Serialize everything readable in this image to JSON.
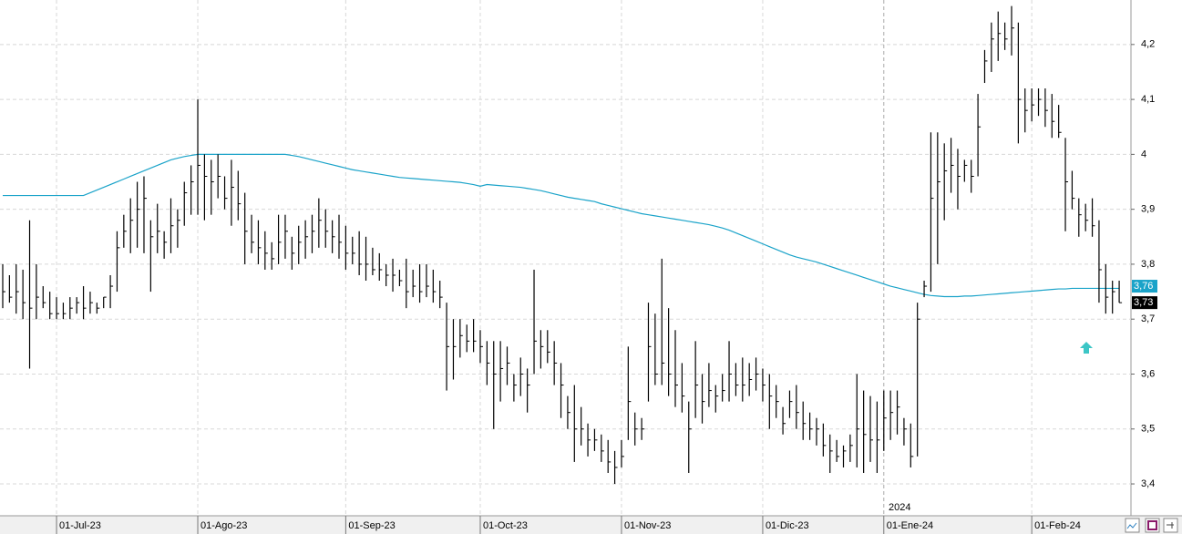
{
  "chart_data": {
    "type": "ohlc",
    "color": "#000000",
    "ylim": [
      3.342,
      4.281
    ],
    "grid": true,
    "yticks": [
      {
        "value": 3.4,
        "label": "3,4"
      },
      {
        "value": 3.5,
        "label": "3,5"
      },
      {
        "value": 3.6,
        "label": "3,6"
      },
      {
        "value": 3.7,
        "label": "3,7"
      },
      {
        "value": 3.8,
        "label": "3,8"
      },
      {
        "value": 3.9,
        "label": "3,9"
      },
      4,
      {
        "value": 4.1,
        "label": "4,1"
      },
      {
        "value": 4.2,
        "label": "4,2"
      }
    ],
    "annotation": "2024",
    "categories": [
      null,
      null,
      null,
      null,
      null,
      null,
      null,
      null,
      "01-Jul-23",
      null,
      null,
      null,
      null,
      null,
      null,
      null,
      null,
      null,
      null,
      null,
      null,
      null,
      null,
      null,
      null,
      null,
      null,
      null,
      null,
      "01-Ago-23",
      null,
      null,
      null,
      null,
      null,
      null,
      null,
      null,
      null,
      null,
      null,
      null,
      null,
      null,
      null,
      null,
      null,
      null,
      null,
      null,
      null,
      "01-Sep-23",
      null,
      null,
      null,
      null,
      null,
      null,
      null,
      null,
      null,
      null,
      null,
      null,
      null,
      null,
      null,
      null,
      null,
      null,
      null,
      "01-Oct-23",
      null,
      null,
      null,
      null,
      null,
      null,
      null,
      null,
      null,
      null,
      null,
      null,
      null,
      null,
      null,
      null,
      null,
      null,
      null,
      null,
      "01-Nov-23",
      null,
      null,
      null,
      null,
      null,
      null,
      null,
      null,
      null,
      null,
      null,
      null,
      null,
      null,
      null,
      null,
      null,
      null,
      null,
      null,
      "01-Dic-23",
      null,
      null,
      null,
      null,
      null,
      null,
      null,
      null,
      null,
      null,
      null,
      null,
      null,
      null,
      null,
      null,
      null,
      "01-Ene-24",
      null,
      null,
      null,
      null,
      null,
      null,
      null,
      null,
      null,
      null,
      null,
      null,
      null,
      null,
      null,
      null,
      null,
      null,
      null,
      null,
      null,
      "01-Feb-24",
      null,
      null,
      null,
      null,
      null,
      null,
      null,
      null,
      null,
      null,
      null,
      null,
      null
    ],
    "high": [
      3.8,
      3.78,
      3.8,
      3.79,
      3.88,
      3.8,
      3.76,
      3.75,
      3.74,
      3.73,
      3.74,
      3.74,
      3.76,
      3.75,
      3.73,
      3.74,
      3.78,
      3.86,
      3.89,
      3.92,
      3.95,
      3.96,
      3.88,
      3.91,
      3.86,
      3.92,
      3.9,
      3.95,
      3.98,
      4.1,
      4.0,
      3.99,
      4.0,
      3.96,
      3.99,
      3.97,
      3.93,
      3.89,
      3.88,
      3.86,
      3.84,
      3.89,
      3.89,
      3.85,
      3.87,
      3.88,
      3.89,
      3.92,
      3.9,
      3.88,
      3.89,
      3.87,
      3.85,
      3.86,
      3.85,
      3.83,
      3.82,
      3.8,
      3.81,
      3.79,
      3.81,
      3.79,
      3.8,
      3.8,
      3.79,
      3.77,
      3.73,
      3.7,
      3.7,
      3.69,
      3.7,
      3.68,
      3.66,
      3.66,
      3.66,
      3.65,
      3.6,
      3.63,
      3.61,
      3.79,
      3.68,
      3.68,
      3.66,
      3.62,
      3.56,
      3.58,
      3.54,
      3.51,
      3.5,
      3.49,
      3.48,
      3.46,
      3.48,
      3.65,
      3.53,
      3.52,
      3.73,
      3.71,
      3.81,
      3.72,
      3.68,
      3.62,
      3.55,
      3.66,
      3.6,
      3.62,
      3.58,
      3.6,
      3.66,
      3.62,
      3.63,
      3.62,
      3.63,
      3.61,
      3.6,
      3.58,
      3.54,
      3.57,
      3.58,
      3.55,
      3.53,
      3.52,
      3.51,
      3.49,
      3.48,
      3.47,
      3.49,
      3.6,
      3.57,
      3.56,
      3.55,
      3.57,
      3.57,
      3.57,
      3.52,
      3.51,
      3.73,
      3.77,
      4.04,
      4.04,
      4.02,
      4.03,
      4.01,
      3.99,
      3.99,
      4.11,
      4.19,
      4.24,
      4.26,
      4.24,
      4.27,
      4.24,
      4.12,
      4.12,
      4.12,
      4.12,
      4.11,
      4.09,
      4.03,
      3.97,
      3.92,
      3.91,
      3.92,
      3.88,
      3.8,
      3.77,
      3.77
    ],
    "low": [
      3.72,
      3.73,
      3.71,
      3.7,
      3.61,
      3.7,
      3.72,
      3.7,
      3.7,
      3.7,
      3.7,
      3.71,
      3.7,
      3.71,
      3.71,
      3.72,
      3.72,
      3.75,
      3.83,
      3.82,
      3.83,
      3.82,
      3.75,
      3.82,
      3.81,
      3.82,
      3.83,
      3.87,
      3.89,
      3.89,
      3.88,
      3.89,
      3.92,
      3.9,
      3.87,
      3.88,
      3.8,
      3.82,
      3.8,
      3.79,
      3.79,
      3.8,
      3.81,
      3.79,
      3.8,
      3.81,
      3.82,
      3.83,
      3.83,
      3.82,
      3.81,
      3.79,
      3.8,
      3.78,
      3.77,
      3.78,
      3.77,
      3.76,
      3.75,
      3.76,
      3.72,
      3.74,
      3.73,
      3.74,
      3.73,
      3.72,
      3.57,
      3.59,
      3.63,
      3.64,
      3.64,
      3.62,
      3.58,
      3.5,
      3.55,
      3.58,
      3.55,
      3.56,
      3.53,
      3.6,
      3.61,
      3.62,
      3.58,
      3.52,
      3.5,
      3.44,
      3.47,
      3.45,
      3.46,
      3.44,
      3.42,
      3.4,
      3.43,
      3.48,
      3.47,
      3.48,
      3.55,
      3.58,
      3.58,
      3.56,
      3.54,
      3.53,
      3.42,
      3.52,
      3.51,
      3.54,
      3.53,
      3.55,
      3.55,
      3.56,
      3.55,
      3.56,
      3.57,
      3.55,
      3.5,
      3.52,
      3.49,
      3.52,
      3.5,
      3.48,
      3.48,
      3.47,
      3.45,
      3.42,
      3.44,
      3.43,
      3.44,
      3.43,
      3.42,
      3.44,
      3.42,
      3.46,
      3.48,
      3.49,
      3.47,
      3.43,
      3.45,
      3.74,
      3.75,
      3.8,
      3.88,
      3.93,
      3.9,
      3.95,
      3.93,
      3.96,
      4.13,
      4.15,
      4.17,
      4.19,
      4.18,
      4.02,
      4.04,
      4.06,
      4.07,
      4.05,
      4.03,
      4.03,
      3.86,
      3.9,
      3.85,
      3.86,
      3.85,
      3.73,
      3.71,
      3.71,
      3.73
    ],
    "close": [
      3.75,
      3.74,
      3.75,
      3.73,
      3.72,
      3.74,
      3.73,
      3.71,
      3.71,
      3.71,
      3.72,
      3.73,
      3.72,
      3.73,
      3.72,
      3.74,
      3.76,
      3.83,
      3.86,
      3.88,
      3.9,
      3.92,
      3.85,
      3.86,
      3.84,
      3.87,
      3.88,
      3.93,
      3.95,
      3.98,
      3.96,
      3.95,
      3.96,
      3.92,
      3.94,
      3.91,
      3.86,
      3.84,
      3.83,
      3.82,
      3.81,
      3.84,
      3.86,
      3.82,
      3.84,
      3.85,
      3.86,
      3.88,
      3.86,
      3.85,
      3.84,
      3.82,
      3.82,
      3.8,
      3.8,
      3.79,
      3.79,
      3.78,
      3.78,
      3.77,
      3.75,
      3.76,
      3.75,
      3.76,
      3.75,
      3.74,
      3.65,
      3.65,
      3.67,
      3.66,
      3.66,
      3.65,
      3.62,
      3.6,
      3.61,
      3.62,
      3.58,
      3.6,
      3.58,
      3.66,
      3.65,
      3.64,
      3.62,
      3.58,
      3.53,
      3.5,
      3.5,
      3.48,
      3.48,
      3.46,
      3.44,
      3.43,
      3.45,
      3.55,
      3.5,
      3.5,
      3.65,
      3.6,
      3.62,
      3.6,
      3.58,
      3.56,
      3.5,
      3.58,
      3.55,
      3.57,
      3.56,
      3.57,
      3.6,
      3.58,
      3.58,
      3.59,
      3.6,
      3.58,
      3.56,
      3.55,
      3.51,
      3.55,
      3.53,
      3.51,
      3.5,
      3.5,
      3.47,
      3.46,
      3.45,
      3.46,
      3.47,
      3.5,
      3.49,
      3.48,
      3.48,
      3.52,
      3.53,
      3.54,
      3.5,
      3.45,
      3.7,
      3.76,
      3.92,
      3.95,
      3.97,
      3.98,
      3.96,
      3.98,
      3.96,
      4.05,
      4.17,
      4.21,
      4.22,
      4.21,
      4.23,
      4.1,
      4.08,
      4.09,
      4.1,
      4.08,
      4.06,
      4.04,
      3.95,
      3.92,
      3.89,
      3.88,
      3.87,
      3.79,
      3.74,
      3.75,
      3.73
    ],
    "moving_average": {
      "color": "#1aa3c9",
      "values": [
        3.925,
        3.925,
        3.925,
        3.925,
        3.925,
        3.925,
        3.925,
        3.925,
        3.925,
        3.925,
        3.925,
        3.925,
        3.925,
        3.93,
        3.935,
        3.94,
        3.945,
        3.95,
        3.955,
        3.96,
        3.965,
        3.97,
        3.975,
        3.98,
        3.985,
        3.99,
        3.993,
        3.996,
        3.998,
        4.0,
        4.0,
        4.0,
        4.0,
        4.0,
        4.0,
        4.0,
        4.0,
        4.0,
        4.0,
        4.0,
        4.0,
        4.0,
        4.0,
        3.998,
        3.996,
        3.993,
        3.99,
        3.987,
        3.984,
        3.981,
        3.978,
        3.975,
        3.972,
        3.97,
        3.968,
        3.966,
        3.964,
        3.962,
        3.96,
        3.958,
        3.957,
        3.956,
        3.955,
        3.954,
        3.953,
        3.952,
        3.951,
        3.95,
        3.949,
        3.947,
        3.945,
        3.942,
        3.945,
        3.944,
        3.943,
        3.942,
        3.941,
        3.94,
        3.938,
        3.936,
        3.934,
        3.931,
        3.928,
        3.925,
        3.922,
        3.92,
        3.918,
        3.916,
        3.914,
        3.91,
        3.907,
        3.904,
        3.901,
        3.898,
        3.895,
        3.892,
        3.89,
        3.888,
        3.886,
        3.884,
        3.882,
        3.88,
        3.878,
        3.876,
        3.874,
        3.872,
        3.869,
        3.866,
        3.862,
        3.857,
        3.852,
        3.847,
        3.842,
        3.837,
        3.832,
        3.827,
        3.822,
        3.817,
        3.813,
        3.81,
        3.807,
        3.804,
        3.8,
        3.796,
        3.792,
        3.788,
        3.784,
        3.78,
        3.776,
        3.772,
        3.768,
        3.764,
        3.76,
        3.757,
        3.754,
        3.751,
        3.748,
        3.745,
        3.743,
        3.742,
        3.741,
        3.741,
        3.741,
        3.742,
        3.742,
        3.743,
        3.744,
        3.745,
        3.746,
        3.747,
        3.748,
        3.749,
        3.75,
        3.751,
        3.752,
        3.753,
        3.754,
        3.755,
        3.755,
        3.756,
        3.756,
        3.756,
        3.756,
        3.756,
        3.756,
        3.756,
        3.756
      ]
    },
    "ma_last_label": {
      "value": 3.76,
      "label": "3,76"
    },
    "last_label": {
      "value": 3.73,
      "label": "3,73"
    }
  }
}
